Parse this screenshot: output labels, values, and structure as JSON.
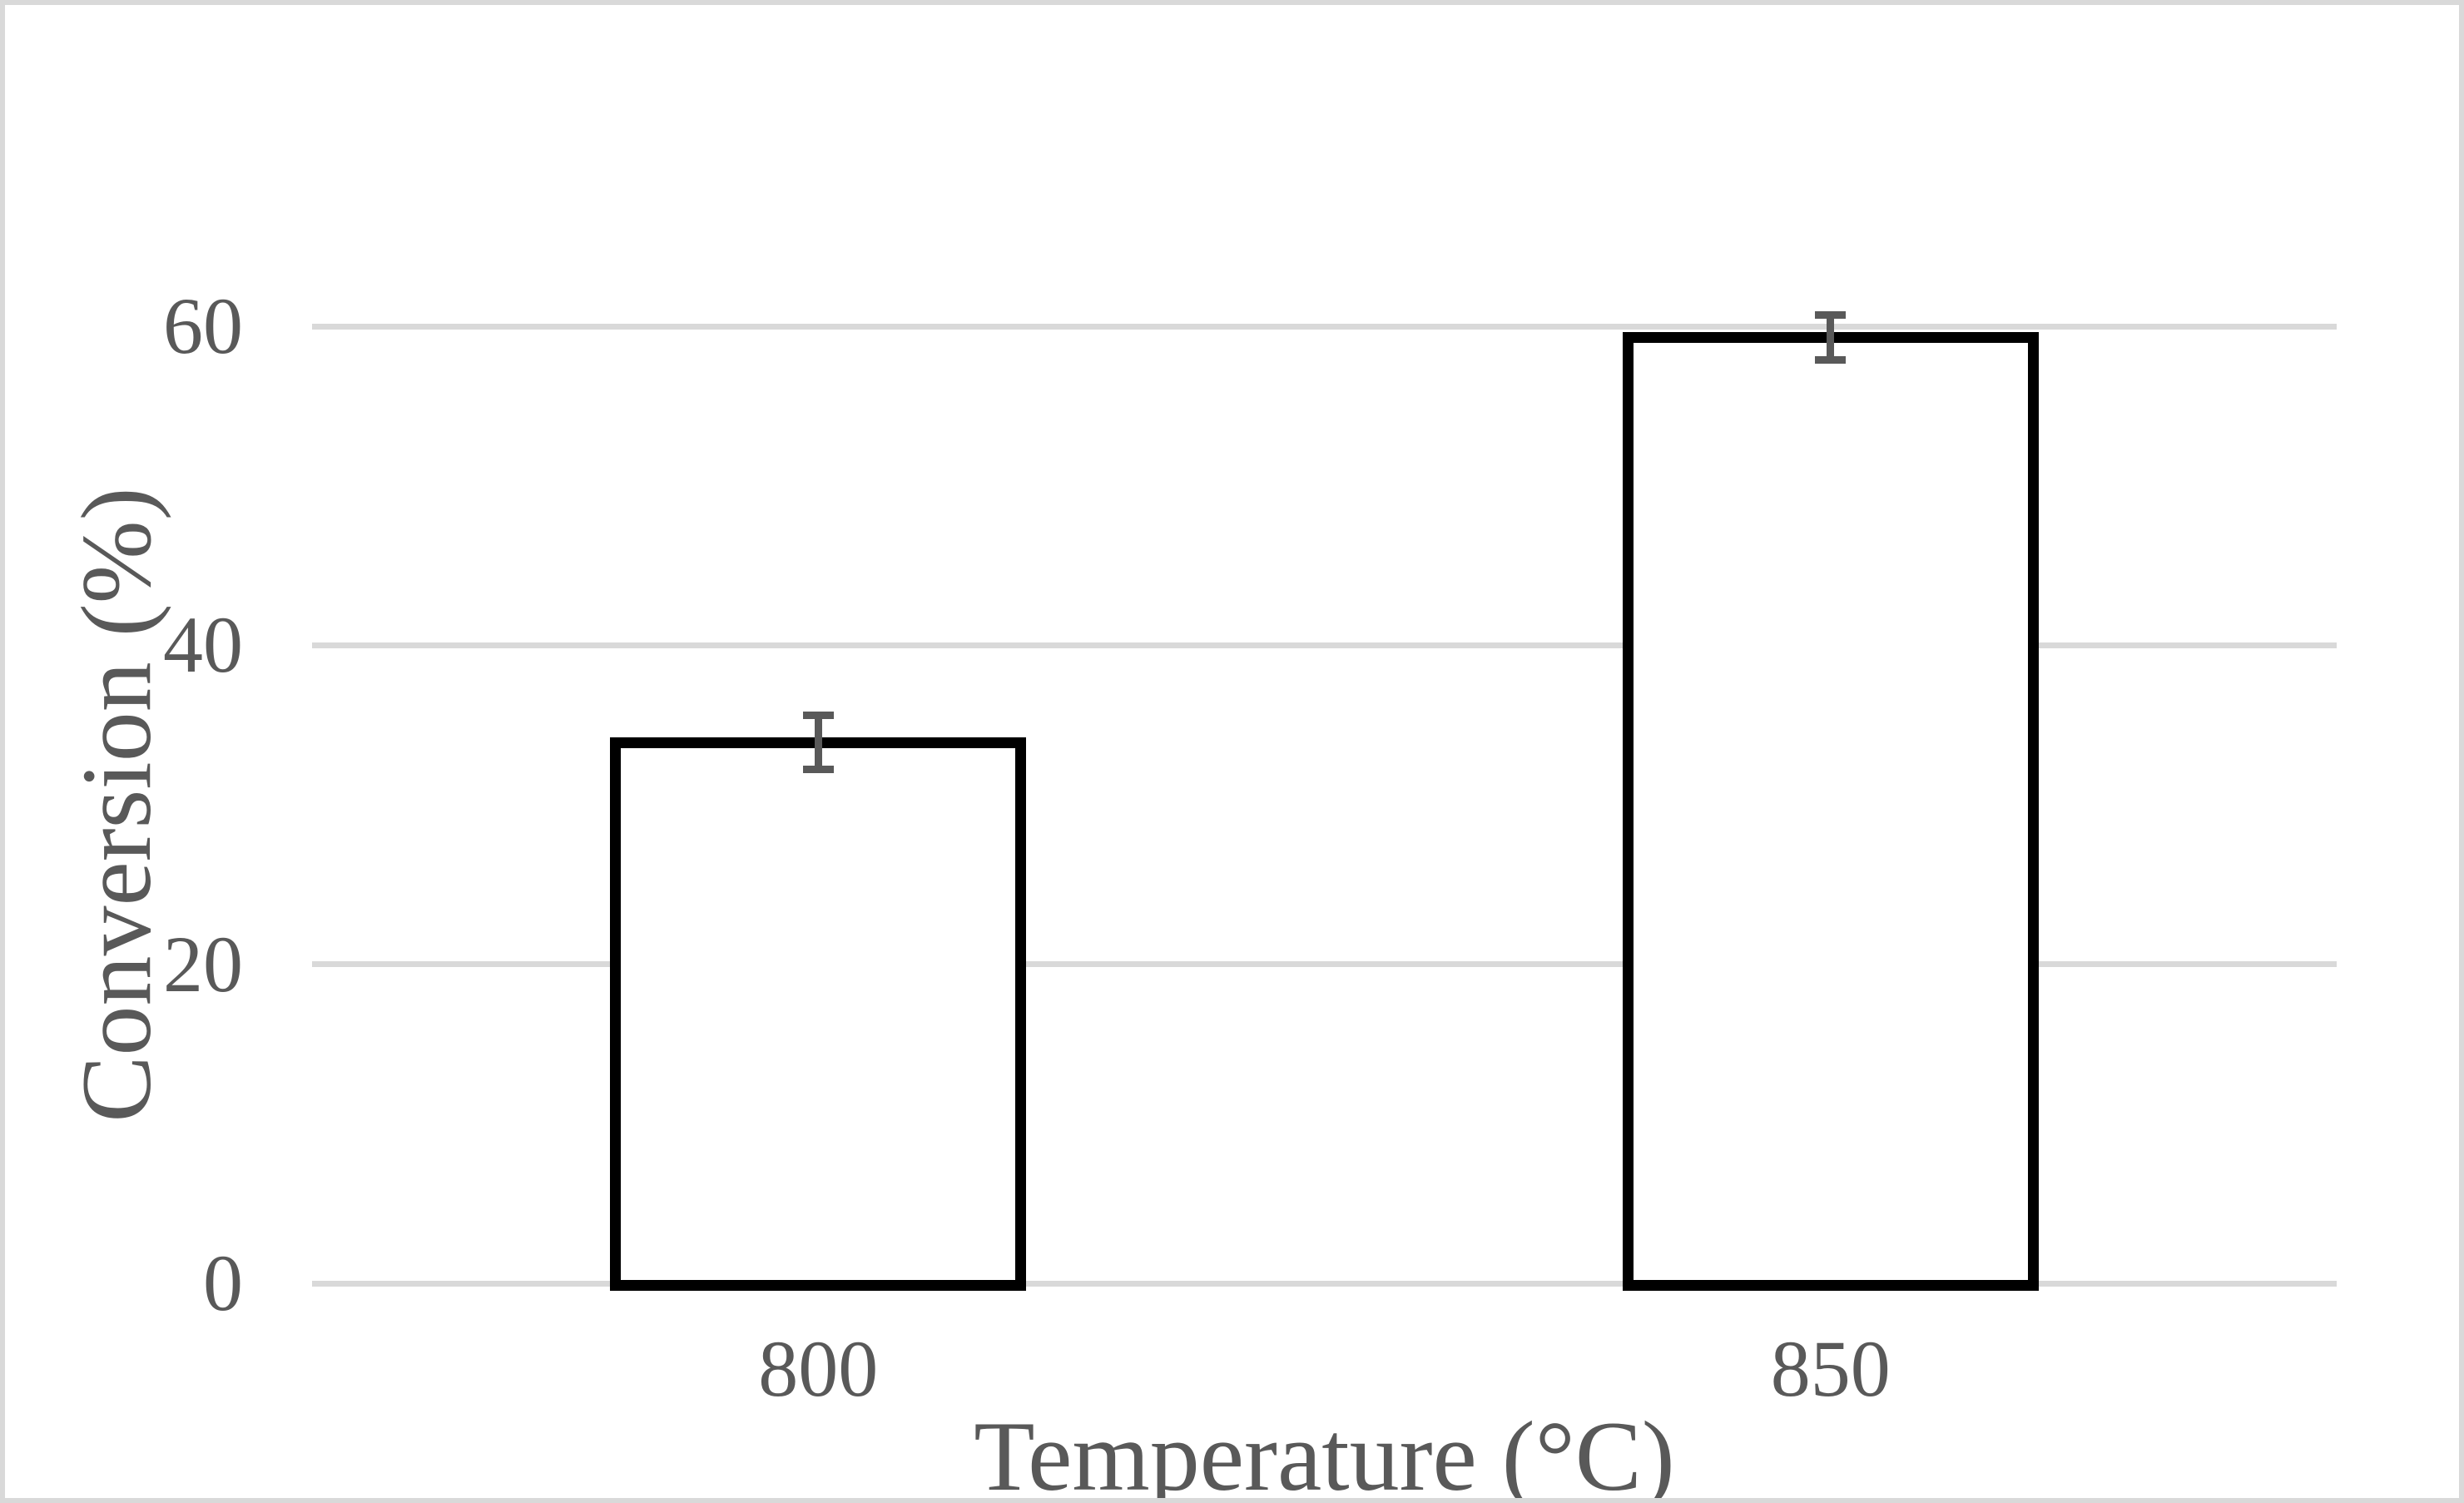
{
  "figure": {
    "background": "#ffffff",
    "frame_border_color": "#d9d9d9"
  },
  "chart_data": {
    "type": "bar",
    "title": "",
    "xlabel": "Temperature (°C)",
    "ylabel": "Conversion (%)",
    "categories": [
      "800",
      "850"
    ],
    "series": [
      {
        "name": "Conversion",
        "values": [
          33.9,
          59.3
        ],
        "errors": [
          1.7,
          1.4
        ]
      }
    ],
    "ytick_labels": [
      "0",
      "20",
      "40",
      "60"
    ],
    "ytick_values": [
      0,
      20,
      40,
      60
    ],
    "ylim": [
      0,
      75
    ],
    "grid": "horizontal",
    "legend_position": "none",
    "colors": {
      "bar_fill": "#ffffff",
      "bar_border": "#000000",
      "errorbar": "#595959",
      "gridline": "#d9d9d9",
      "text": "#595959"
    }
  }
}
